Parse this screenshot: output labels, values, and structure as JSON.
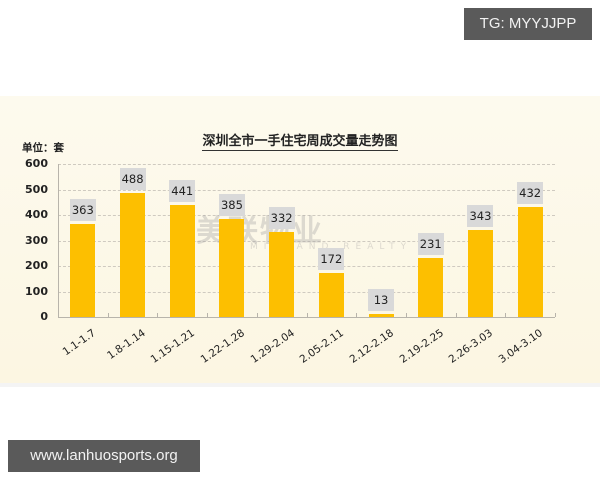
{
  "overlays": {
    "top_tag": "TG: MYYJJPP",
    "bottom_tag": "www.lanhuosports.org"
  },
  "chart": {
    "title": "深圳全市一手住宅周成交量走势图",
    "unit_label": "单位：套",
    "watermark": "美联物业",
    "watermark_sub": "MIDLAND REALTY",
    "y_ticks": [
      "600",
      "500",
      "400",
      "300",
      "200",
      "100",
      "0"
    ]
  },
  "chart_data": {
    "type": "bar",
    "title": "深圳全市一手住宅周成交量走势图",
    "xlabel": "",
    "ylabel": "单位：套",
    "ylim": [
      0,
      600
    ],
    "y_ticks": [
      0,
      100,
      200,
      300,
      400,
      500,
      600
    ],
    "grid": true,
    "legend": null,
    "categories": [
      "1.1-1.7",
      "1.8-1.14",
      "1.15-1.21",
      "1.22-1.28",
      "1.29-2.04",
      "2.05-2.11",
      "2.12-2.18",
      "2.19-2.25",
      "2.26-3.03",
      "3.04-3.10"
    ],
    "values": [
      363,
      488,
      441,
      385,
      332,
      172,
      13,
      231,
      343,
      432
    ],
    "colors": {
      "bar": "#fdbf00",
      "label_box": "#d9d9d9",
      "background": "#fcf7e6"
    }
  }
}
